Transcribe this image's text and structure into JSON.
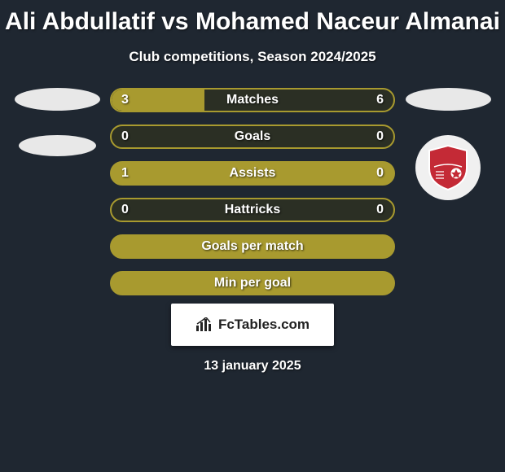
{
  "title": "Ali Abdullatif vs Mohamed Naceur Almanai",
  "subtitle": "Club competitions, Season 2024/2025",
  "date": "13 january 2025",
  "branding": "FcTables.com",
  "colors": {
    "background": "#1f2731",
    "bar_border": "#a89a2f",
    "bar_fill_left": "#a89a2f",
    "bar_fill_solid": "#a89a2f",
    "bar_outline_bg": "#2b2f24",
    "text": "#ffffff",
    "oval": "#e8e8e8",
    "shield_primary": "#c42a36",
    "shield_stroke": "#ffffff"
  },
  "bars": [
    {
      "label": "Matches",
      "left": "3",
      "right": "6",
      "left_fill_pct": 33,
      "type": "split"
    },
    {
      "label": "Goals",
      "left": "0",
      "right": "0",
      "left_fill_pct": 0,
      "type": "outline"
    },
    {
      "label": "Assists",
      "left": "1",
      "right": "0",
      "left_fill_pct": 100,
      "type": "solid"
    },
    {
      "label": "Hattricks",
      "left": "0",
      "right": "0",
      "left_fill_pct": 0,
      "type": "outline"
    },
    {
      "label": "Goals per match",
      "left": "",
      "right": "",
      "left_fill_pct": 100,
      "type": "solid"
    },
    {
      "label": "Min per goal",
      "left": "",
      "right": "",
      "left_fill_pct": 100,
      "type": "solid"
    }
  ],
  "left_clubs": [
    {
      "style": "oval"
    },
    {
      "style": "oval2"
    }
  ],
  "right_clubs": [
    {
      "style": "oval"
    },
    {
      "style": "shield"
    }
  ]
}
